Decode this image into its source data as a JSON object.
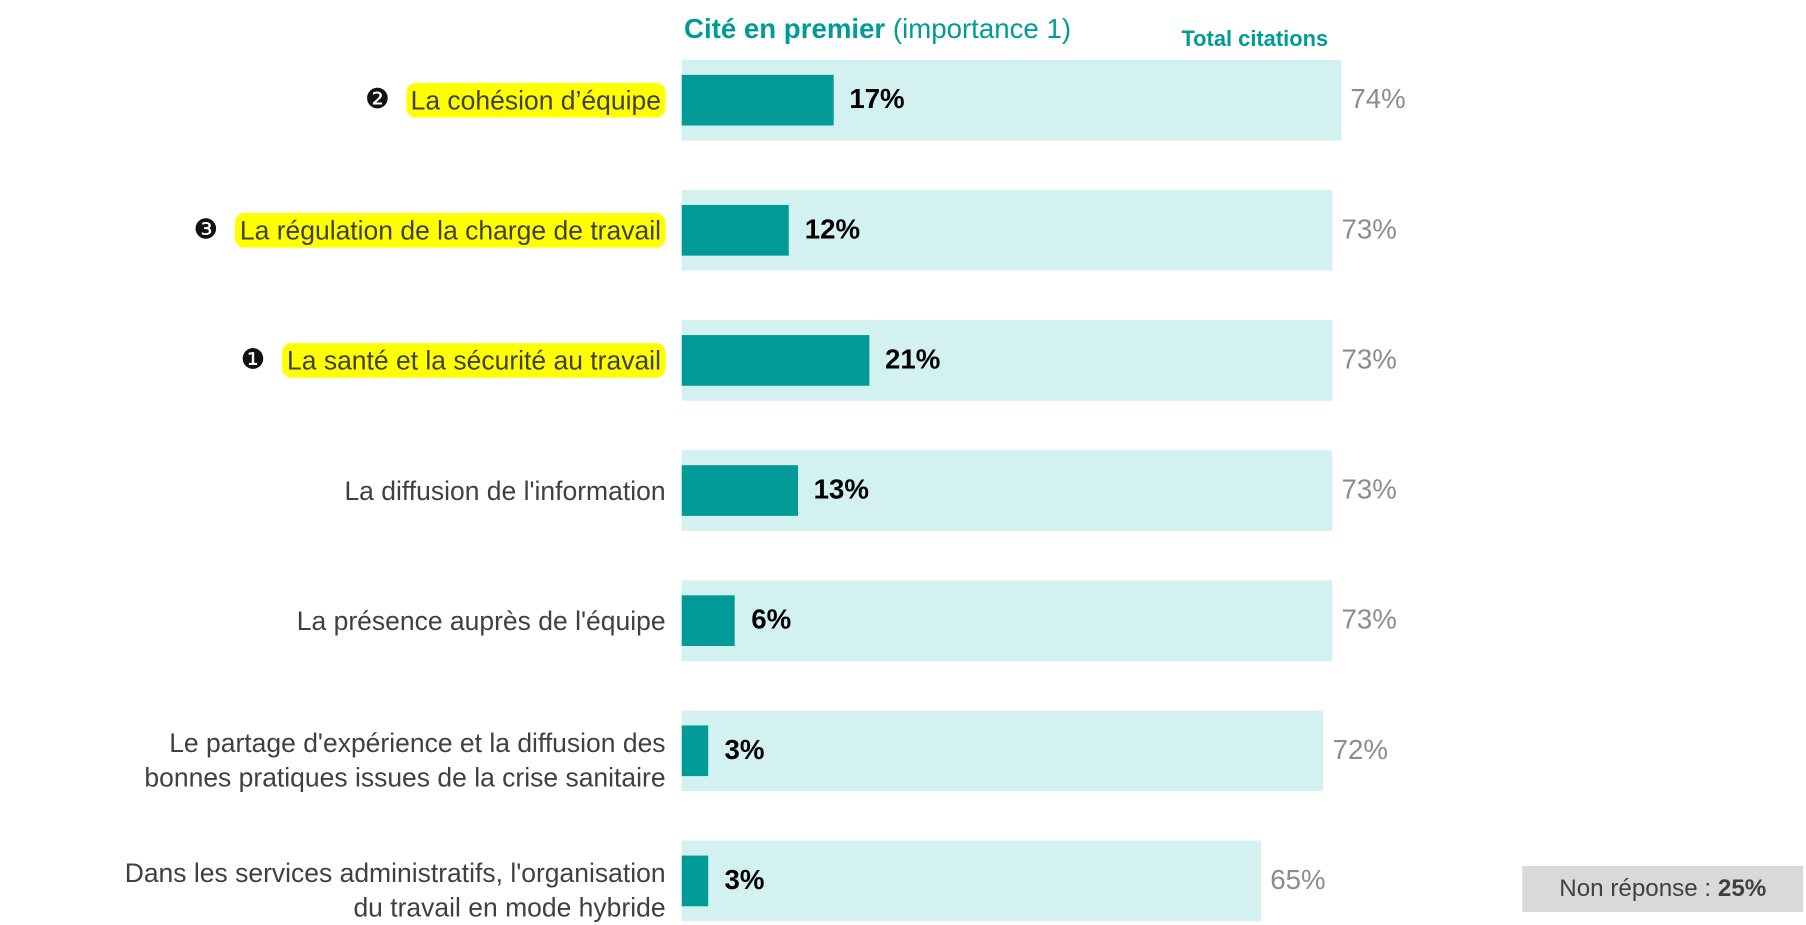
{
  "chart_data": {
    "type": "bar",
    "orientation": "horizontal",
    "legend_note": "(importance 1)",
    "categories": [
      "La cohésion d’équipe",
      "La régulation de la charge de travail",
      "La santé et la sécurité au travail",
      "La diffusion de l'information",
      "La présence auprès de l'équipe",
      "Le partage d'expérience et la diffusion des\nbonnes pratiques issues de la crise sanitaire",
      "Dans les services administratifs, l'organisation\ndu travail en mode hybride"
    ],
    "ranks": [
      "❷",
      "❸",
      "❶",
      null,
      null,
      null,
      null
    ],
    "highlight": [
      true,
      true,
      true,
      false,
      false,
      false,
      false
    ],
    "highlight_color": "#ffff00",
    "series": [
      {
        "name": "Cité en premier",
        "color": "#009b96",
        "values": [
          17,
          12,
          21,
          13,
          6,
          3,
          3
        ],
        "value_labels": [
          "17%",
          "12%",
          "21%",
          "13%",
          "6%",
          "3%",
          "3%"
        ]
      },
      {
        "name": "Total citations",
        "color": "#d3f1f0",
        "values": [
          74,
          73,
          73,
          73,
          73,
          72,
          65
        ],
        "value_labels": [
          "74%",
          "73%",
          "73%",
          "73%",
          "73%",
          "72%",
          "65%"
        ]
      }
    ],
    "xlim": [
      0,
      100
    ],
    "note": {
      "label": "Non réponse :",
      "value": 25,
      "value_label": "25%"
    }
  }
}
